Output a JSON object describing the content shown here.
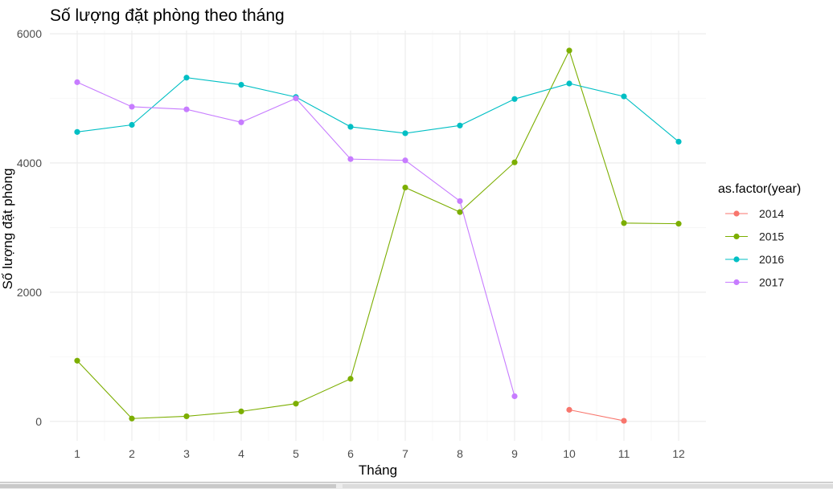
{
  "chart_data": {
    "type": "line",
    "title": "Số lượng đặt phòng theo tháng",
    "xlabel": "Tháng",
    "ylabel": "Số lượng đặt phòng",
    "x_ticks": [
      1,
      2,
      3,
      4,
      5,
      6,
      7,
      8,
      9,
      10,
      11,
      12
    ],
    "y_ticks": [
      0,
      2000,
      4000,
      6000
    ],
    "xlim": [
      0.5,
      12.5
    ],
    "ylim": [
      -300,
      6050
    ],
    "grid": true,
    "legend": {
      "title": "as.factor(year)",
      "position": "right"
    },
    "series": [
      {
        "name": "2014",
        "color": "#F8766D",
        "points": [
          [
            10,
            180
          ],
          [
            11,
            10
          ]
        ]
      },
      {
        "name": "2015",
        "color": "#7CAE00",
        "points": [
          [
            1,
            940
          ],
          [
            2,
            45
          ],
          [
            3,
            80
          ],
          [
            4,
            155
          ],
          [
            5,
            275
          ],
          [
            6,
            660
          ],
          [
            7,
            3620
          ],
          [
            8,
            3240
          ],
          [
            9,
            4010
          ],
          [
            10,
            5740
          ],
          [
            11,
            3070
          ],
          [
            12,
            3060
          ]
        ]
      },
      {
        "name": "2016",
        "color": "#00BFC4",
        "points": [
          [
            1,
            4480
          ],
          [
            2,
            4590
          ],
          [
            3,
            5320
          ],
          [
            4,
            5210
          ],
          [
            5,
            5020
          ],
          [
            6,
            4560
          ],
          [
            7,
            4460
          ],
          [
            8,
            4580
          ],
          [
            9,
            4990
          ],
          [
            10,
            5230
          ],
          [
            11,
            5030
          ],
          [
            12,
            4330
          ]
        ]
      },
      {
        "name": "2017",
        "color": "#C77CFF",
        "points": [
          [
            1,
            5250
          ],
          [
            2,
            4870
          ],
          [
            3,
            4830
          ],
          [
            4,
            4630
          ],
          [
            5,
            5000
          ],
          [
            6,
            4060
          ],
          [
            7,
            4040
          ],
          [
            8,
            3410
          ],
          [
            9,
            390
          ]
        ]
      }
    ]
  }
}
